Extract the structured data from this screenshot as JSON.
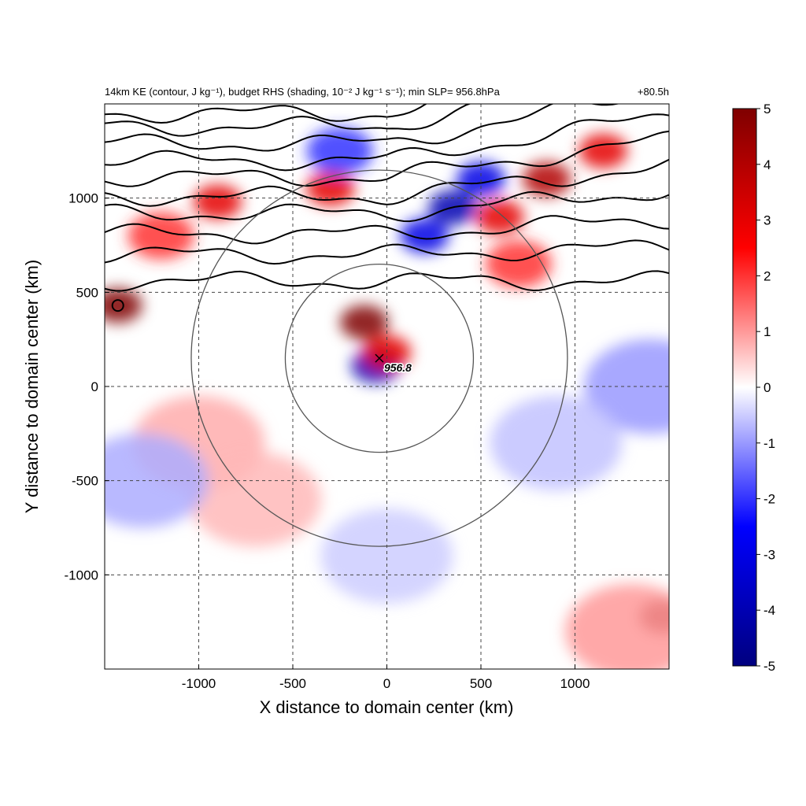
{
  "chart_data": {
    "type": "heatmap",
    "title": "14km KE (contour, J kg⁻¹), budget RHS (shading, 10⁻² J kg⁻¹ s⁻¹); min SLP= 956.8hPa",
    "time_label": "+80.5h",
    "xlabel": "X distance to domain center (km)",
    "ylabel": "Y distance to domain center (km)",
    "xlim": [
      -1500,
      1500
    ],
    "ylim": [
      -1500,
      1500
    ],
    "x_ticks": [
      -1000,
      -500,
      0,
      500,
      1000
    ],
    "y_ticks": [
      1000,
      500,
      0,
      -500,
      -1000
    ],
    "x_tick_labels": [
      "-1000",
      "-500",
      "0",
      "500",
      "1000"
    ],
    "y_tick_labels": [
      "1000",
      "500",
      "0",
      "-500",
      "-1000"
    ],
    "grid": "dashed",
    "colorbar": {
      "range": [
        -5,
        5
      ],
      "ticks": [
        5,
        4,
        3,
        2,
        1,
        0,
        -1,
        -2,
        -3,
        -4,
        -5
      ],
      "tick_labels": [
        "5",
        "4",
        "3",
        "2",
        "1",
        "0",
        "-1",
        "-2",
        "-3",
        "-4",
        "-5"
      ],
      "colors": [
        "#00007f",
        "#0000ff",
        "#ffffff",
        "#ff0000",
        "#7f0000"
      ],
      "placement": "right"
    },
    "storm_center": {
      "x": -40,
      "y": 150,
      "marker": "x",
      "label": "956.8"
    },
    "range_rings": [
      {
        "center_x": -40,
        "center_y": 150,
        "radius": 500
      },
      {
        "center_x": -40,
        "center_y": 150,
        "radius": 1000
      }
    ],
    "ke_contours_y_north": [
      560,
      700,
      810,
      920,
      1010,
      1110,
      1200,
      1290,
      1380,
      1450
    ],
    "shading_features": [
      {
        "x": 350,
        "y": 950,
        "value": -4
      },
      {
        "x": 200,
        "y": 800,
        "value": -3
      },
      {
        "x": 500,
        "y": 1100,
        "value": -3
      },
      {
        "x": 850,
        "y": 1100,
        "value": 4
      },
      {
        "x": 600,
        "y": 900,
        "value": 3
      },
      {
        "x": 1150,
        "y": 1250,
        "value": 3
      },
      {
        "x": -300,
        "y": 1050,
        "value": 3
      },
      {
        "x": -900,
        "y": 980,
        "value": 3
      },
      {
        "x": -1200,
        "y": 800,
        "value": 2
      },
      {
        "x": -1430,
        "y": 430,
        "value": 5
      },
      {
        "x": -120,
        "y": 340,
        "value": 5
      },
      {
        "x": -60,
        "y": 110,
        "value": -4
      },
      {
        "x": 0,
        "y": 180,
        "value": 3
      },
      {
        "x": -250,
        "y": 1250,
        "value": -2
      },
      {
        "x": 700,
        "y": 650,
        "value": 2
      },
      {
        "x": 1400,
        "y": 0,
        "value": -1
      },
      {
        "x": 1470,
        "y": -1220,
        "value": 5
      },
      {
        "x": 1300,
        "y": -1300,
        "value": 1
      },
      {
        "x": -1000,
        "y": -300,
        "value": 0.8
      },
      {
        "x": -700,
        "y": -600,
        "value": 0.7
      },
      {
        "x": -1300,
        "y": -500,
        "value": -0.8
      },
      {
        "x": 900,
        "y": -300,
        "value": -0.6
      },
      {
        "x": 0,
        "y": -900,
        "value": -0.5
      }
    ]
  }
}
